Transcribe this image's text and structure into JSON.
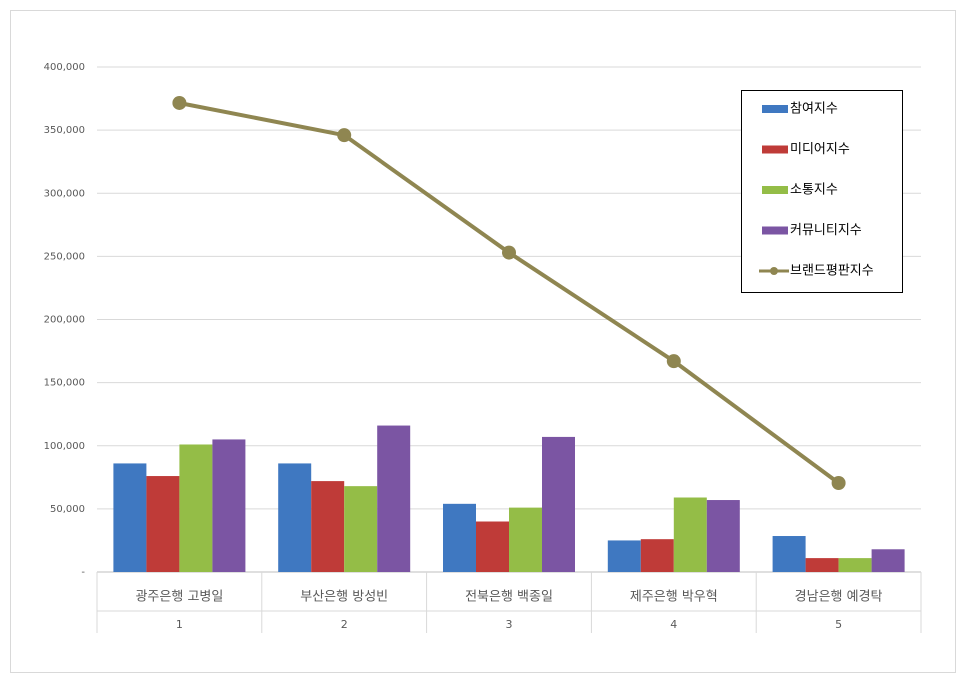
{
  "chart_data": {
    "type": "bar",
    "categories": [
      "광주은행 고병일",
      "부산은행 방성빈",
      "전북은행 백종일",
      "제주은행 박우혁",
      "경남은행 예경탁"
    ],
    "category_numbers": [
      "1",
      "2",
      "3",
      "4",
      "5"
    ],
    "series": [
      {
        "name": "참여지수",
        "color": "#3f78c1",
        "values": [
          86000,
          86000,
          54000,
          25000,
          28500
        ]
      },
      {
        "name": "미디어지수",
        "color": "#bf3b38",
        "values": [
          76000,
          72000,
          40000,
          26000,
          11000
        ]
      },
      {
        "name": "소통지수",
        "color": "#94bd47",
        "values": [
          101000,
          68000,
          51000,
          59000,
          11000
        ]
      },
      {
        "name": "커뮤니티지수",
        "color": "#7b55a3",
        "values": [
          105000,
          116000,
          107000,
          57000,
          18000
        ]
      },
      {
        "name": "브랜드평판지수",
        "color": "#8f8651",
        "type": "line",
        "values": [
          371500,
          346000,
          253000,
          167000,
          70500
        ]
      }
    ],
    "ylim": [
      0,
      400000
    ],
    "yticks": [
      {
        "value": 0,
        "label": "-"
      },
      {
        "value": 50000,
        "label": "50,000"
      },
      {
        "value": 100000,
        "label": "100,000"
      },
      {
        "value": 150000,
        "label": "150,000"
      },
      {
        "value": 200000,
        "label": "200,000"
      },
      {
        "value": 250000,
        "label": "250,000"
      },
      {
        "value": 300000,
        "label": "300,000"
      },
      {
        "value": 350000,
        "label": "350,000"
      },
      {
        "value": 400000,
        "label": "400,000"
      }
    ],
    "grid": true,
    "legend": "upper right"
  }
}
